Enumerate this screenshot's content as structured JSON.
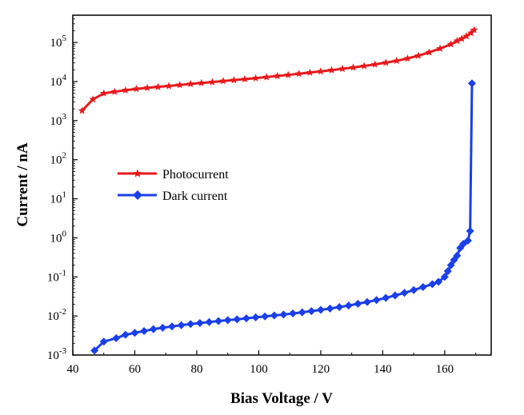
{
  "chart_data": {
    "type": "line",
    "title": "",
    "xlabel": "Bias Voltage / V",
    "ylabel": "Current / nA",
    "xlim": [
      40,
      175
    ],
    "ylim": [
      0.001,
      500000
    ],
    "yscale": "log",
    "legend_position": "middle-left",
    "x_ticks": [
      {
        "value": 40,
        "label": "40"
      },
      {
        "value": 60,
        "label": "60"
      },
      {
        "value": 80,
        "label": "80"
      },
      {
        "value": 100,
        "label": "100"
      },
      {
        "value": 120,
        "label": "120"
      },
      {
        "value": 140,
        "label": "140"
      },
      {
        "value": 160,
        "label": "160"
      }
    ],
    "y_ticks": [
      {
        "value": 100000,
        "base": "10",
        "exp": "5"
      },
      {
        "value": 10000,
        "base": "10",
        "exp": "4"
      },
      {
        "value": 1000,
        "base": "10",
        "exp": "3"
      },
      {
        "value": 100,
        "base": "10",
        "exp": "2"
      },
      {
        "value": 10,
        "base": "10",
        "exp": "1"
      },
      {
        "value": 1,
        "base": "10",
        "exp": "0"
      },
      {
        "value": 0.1,
        "base": "10",
        "exp": "-1"
      },
      {
        "value": 0.01,
        "base": "10",
        "exp": "-2"
      },
      {
        "value": 0.001,
        "base": "10",
        "exp": "-3"
      }
    ],
    "series": [
      {
        "name": "Photocurrent",
        "color": "#e8191c",
        "marker": "star",
        "points": [
          [
            43,
            1800
          ],
          [
            46.5,
            3500
          ],
          [
            50,
            5000
          ],
          [
            53.5,
            5500
          ],
          [
            57,
            6000
          ],
          [
            60.5,
            6500
          ],
          [
            64,
            6900
          ],
          [
            67.5,
            7300
          ],
          [
            71,
            7700
          ],
          [
            74.5,
            8200
          ],
          [
            78,
            8700
          ],
          [
            81.5,
            9200
          ],
          [
            85,
            9700
          ],
          [
            88.5,
            10300
          ],
          [
            92,
            10900
          ],
          [
            95.5,
            11500
          ],
          [
            99,
            12200
          ],
          [
            102.5,
            13000
          ],
          [
            106,
            13900
          ],
          [
            109.5,
            14800
          ],
          [
            113,
            15900
          ],
          [
            116.5,
            17000
          ],
          [
            120,
            18200
          ],
          [
            123.5,
            19600
          ],
          [
            127,
            21200
          ],
          [
            130.5,
            23000
          ],
          [
            134,
            25000
          ],
          [
            137.5,
            27500
          ],
          [
            141,
            30500
          ],
          [
            144.5,
            34000
          ],
          [
            148,
            39000
          ],
          [
            151.5,
            46000
          ],
          [
            155,
            56000
          ],
          [
            158.5,
            70000
          ],
          [
            162,
            90000
          ],
          [
            164,
            110000
          ],
          [
            165.5,
            125000
          ],
          [
            167,
            145000
          ],
          [
            168.5,
            175000
          ],
          [
            169.5,
            210000
          ]
        ]
      },
      {
        "name": "Dark current",
        "color": "#1a3fe8",
        "marker": "diamond",
        "points": [
          [
            47,
            0.0013
          ],
          [
            50,
            0.0022
          ],
          [
            54,
            0.0027
          ],
          [
            57,
            0.0033
          ],
          [
            60,
            0.0037
          ],
          [
            63,
            0.0041
          ],
          [
            66,
            0.0046
          ],
          [
            69,
            0.005
          ],
          [
            72,
            0.0054
          ],
          [
            75,
            0.0058
          ],
          [
            78,
            0.0062
          ],
          [
            81,
            0.0066
          ],
          [
            84,
            0.007
          ],
          [
            87,
            0.0074
          ],
          [
            90,
            0.0078
          ],
          [
            93,
            0.0082
          ],
          [
            96,
            0.0087
          ],
          [
            99,
            0.0092
          ],
          [
            102,
            0.0097
          ],
          [
            105,
            0.0103
          ],
          [
            108,
            0.0109
          ],
          [
            111,
            0.0116
          ],
          [
            114,
            0.0124
          ],
          [
            117,
            0.0133
          ],
          [
            120,
            0.0143
          ],
          [
            123,
            0.0155
          ],
          [
            126,
            0.0169
          ],
          [
            129,
            0.0185
          ],
          [
            132,
            0.0205
          ],
          [
            135,
            0.0228
          ],
          [
            138,
            0.0255
          ],
          [
            141,
            0.029
          ],
          [
            144,
            0.0335
          ],
          [
            147,
            0.039
          ],
          [
            150,
            0.046
          ],
          [
            153,
            0.055
          ],
          [
            156,
            0.065
          ],
          [
            158,
            0.075
          ],
          [
            160,
            0.1
          ],
          [
            161,
            0.14
          ],
          [
            162,
            0.2
          ],
          [
            163,
            0.27
          ],
          [
            164,
            0.35
          ],
          [
            165,
            0.55
          ],
          [
            166,
            0.7
          ],
          [
            167.5,
            0.85
          ],
          [
            168.2,
            1.5
          ],
          [
            168.8,
            9000
          ]
        ]
      }
    ]
  }
}
